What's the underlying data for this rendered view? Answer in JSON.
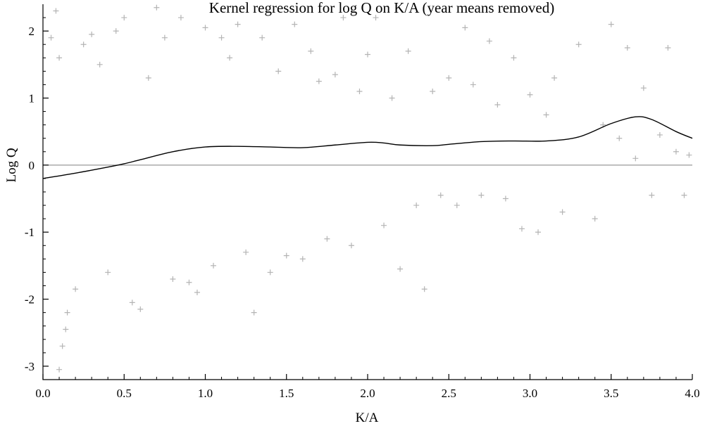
{
  "chart_data": {
    "type": "scatter",
    "title": "Kernel regression for log Q on K/A (year means removed)",
    "xlabel": "K/A",
    "ylabel": "Log Q",
    "xlim": [
      0,
      4
    ],
    "ylim": [
      -3.2,
      2.4
    ],
    "x_ticks": [
      0.0,
      0.5,
      1.0,
      1.5,
      2.0,
      2.5,
      3.0,
      3.5,
      4.0
    ],
    "x_tick_labels": [
      "0.0",
      "0.5",
      "1.0",
      "1.5",
      "2.0",
      "2.5",
      "3.0",
      "3.5",
      "4.0"
    ],
    "y_ticks": [
      -3,
      -2,
      -1,
      0,
      1,
      2
    ],
    "y_tick_labels": [
      "-3",
      "-2",
      "-1",
      "0",
      "1",
      "2"
    ],
    "grid": false,
    "reference_line": {
      "y": 0,
      "color": "#999999"
    },
    "scatter_marker": "+",
    "colors": {
      "points": "#b4b4b4",
      "fit": "#000000",
      "reference": "#999999"
    },
    "series": [
      {
        "type": "scatter",
        "points": [
          [
            0.05,
            1.9
          ],
          [
            0.08,
            2.3
          ],
          [
            0.1,
            1.6
          ],
          [
            0.12,
            -2.7
          ],
          [
            0.1,
            -3.05
          ],
          [
            0.14,
            -2.45
          ],
          [
            0.15,
            -2.2
          ],
          [
            0.2,
            -1.85
          ],
          [
            0.25,
            1.8
          ],
          [
            0.3,
            1.95
          ],
          [
            0.35,
            1.5
          ],
          [
            0.4,
            -1.6
          ],
          [
            0.45,
            2.0
          ],
          [
            0.5,
            2.2
          ],
          [
            0.55,
            -2.05
          ],
          [
            0.6,
            -2.15
          ],
          [
            0.65,
            1.3
          ],
          [
            0.7,
            2.35
          ],
          [
            0.75,
            1.9
          ],
          [
            0.8,
            -1.7
          ],
          [
            0.85,
            2.2
          ],
          [
            0.9,
            -1.75
          ],
          [
            0.95,
            -1.9
          ],
          [
            1.0,
            2.05
          ],
          [
            1.05,
            -1.5
          ],
          [
            1.1,
            1.9
          ],
          [
            1.15,
            1.6
          ],
          [
            1.2,
            2.1
          ],
          [
            1.25,
            -1.3
          ],
          [
            1.3,
            -2.2
          ],
          [
            1.35,
            1.9
          ],
          [
            1.4,
            -1.6
          ],
          [
            1.45,
            1.4
          ],
          [
            1.5,
            -1.35
          ],
          [
            1.55,
            2.1
          ],
          [
            1.6,
            -1.4
          ],
          [
            1.65,
            1.7
          ],
          [
            1.7,
            1.25
          ],
          [
            1.75,
            -1.1
          ],
          [
            1.8,
            1.35
          ],
          [
            1.85,
            2.2
          ],
          [
            1.9,
            -1.2
          ],
          [
            1.95,
            1.1
          ],
          [
            2.0,
            1.65
          ],
          [
            2.05,
            2.2
          ],
          [
            2.1,
            -0.9
          ],
          [
            2.15,
            1.0
          ],
          [
            2.2,
            -1.55
          ],
          [
            2.25,
            1.7
          ],
          [
            2.3,
            -0.6
          ],
          [
            2.35,
            -1.85
          ],
          [
            2.4,
            1.1
          ],
          [
            2.45,
            -0.45
          ],
          [
            2.5,
            1.3
          ],
          [
            2.55,
            -0.6
          ],
          [
            2.6,
            2.05
          ],
          [
            2.65,
            1.2
          ],
          [
            2.7,
            -0.45
          ],
          [
            2.75,
            1.85
          ],
          [
            2.8,
            0.9
          ],
          [
            2.85,
            -0.5
          ],
          [
            2.9,
            1.6
          ],
          [
            2.95,
            -0.95
          ],
          [
            3.0,
            1.05
          ],
          [
            3.05,
            -1.0
          ],
          [
            3.1,
            0.75
          ],
          [
            3.15,
            1.3
          ],
          [
            3.2,
            -0.7
          ],
          [
            3.3,
            1.8
          ],
          [
            3.4,
            -0.8
          ],
          [
            3.45,
            0.6
          ],
          [
            3.5,
            2.1
          ],
          [
            3.55,
            0.4
          ],
          [
            3.6,
            1.75
          ],
          [
            3.65,
            0.1
          ],
          [
            3.7,
            1.15
          ],
          [
            3.75,
            -0.45
          ],
          [
            3.8,
            0.45
          ],
          [
            3.85,
            1.75
          ],
          [
            3.9,
            0.2
          ],
          [
            3.95,
            -0.45
          ],
          [
            3.98,
            0.15
          ]
        ]
      },
      {
        "type": "line",
        "x": [
          0.0,
          0.2,
          0.4,
          0.5,
          0.6,
          0.8,
          1.0,
          1.2,
          1.4,
          1.6,
          1.8,
          2.0,
          2.1,
          2.2,
          2.4,
          2.5,
          2.7,
          2.9,
          3.1,
          3.3,
          3.5,
          3.65,
          3.75,
          3.9,
          4.0
        ],
        "y": [
          -0.2,
          -0.12,
          -0.03,
          0.02,
          0.08,
          0.2,
          0.27,
          0.28,
          0.27,
          0.26,
          0.3,
          0.34,
          0.33,
          0.3,
          0.29,
          0.31,
          0.35,
          0.36,
          0.36,
          0.42,
          0.62,
          0.72,
          0.68,
          0.5,
          0.4
        ]
      }
    ]
  }
}
